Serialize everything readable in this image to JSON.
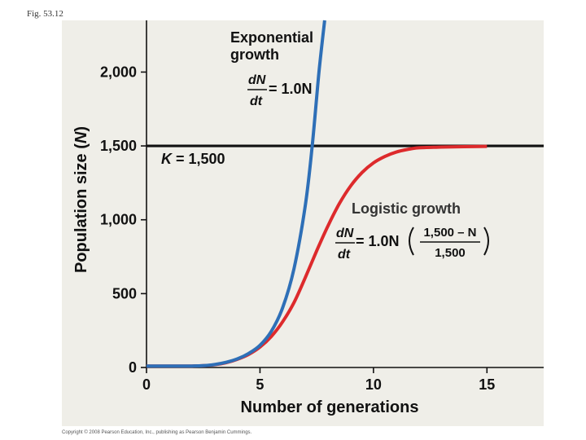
{
  "figure_label": "Fig. 53.12",
  "copyright": "Copyright © 2008 Pearson Education, Inc., publishing as Pearson Benjamin Cummings.",
  "chart_data": {
    "type": "line",
    "title": "",
    "xlabel": "Number of generations",
    "ylabel_parts": [
      "Population size (",
      "N",
      ")"
    ],
    "xlim": [
      0,
      17.5
    ],
    "ylim": [
      0,
      2350
    ],
    "xticks": [
      0,
      5,
      10,
      15
    ],
    "yticks": [
      0,
      500,
      1000,
      1500,
      2000
    ],
    "xtick_labels": [
      "0",
      "5",
      "10",
      "15"
    ],
    "ytick_labels": [
      "0",
      "500",
      "1,000",
      "1,500",
      "2,000"
    ],
    "carrying_capacity": {
      "value": 1500,
      "label": "K = 1,500",
      "label_k": "K",
      "label_rest": " = 1,500",
      "color": "#111111"
    },
    "series": [
      {
        "name": "Exponential growth",
        "name_line1": "Exponential",
        "name_line2": "growth",
        "color": "#2E6FB7",
        "equation": {
          "lhs_num": "dN",
          "lhs_den": "dt",
          "rhs": "= 1.0N"
        },
        "x": [
          0,
          1,
          2,
          2.5,
          3,
          3.5,
          4,
          4.5,
          5,
          5.5,
          6,
          6.5,
          7,
          7.3,
          7.6,
          7.85
        ],
        "y": [
          10,
          10,
          10,
          12,
          20,
          35,
          58,
          95,
          150,
          245,
          405,
          670,
          1100,
          1500,
          2000,
          2350
        ]
      },
      {
        "name": "Logistic growth",
        "color": "#DD2A2C",
        "equation": {
          "lhs_num": "dN",
          "lhs_den": "dt",
          "rhs": "= 1.0N",
          "frac_num": "1,500 – N",
          "frac_den": "1,500"
        },
        "x": [
          0,
          1,
          2,
          2.5,
          3,
          3.5,
          4,
          4.5,
          5,
          5.5,
          6,
          6.5,
          7,
          7.5,
          8,
          8.5,
          9,
          9.5,
          10,
          10.5,
          11,
          11.5,
          12,
          13,
          14,
          15
        ],
        "y": [
          10,
          10,
          10,
          12,
          18,
          32,
          55,
          88,
          138,
          210,
          310,
          440,
          610,
          790,
          960,
          1110,
          1230,
          1320,
          1385,
          1428,
          1458,
          1476,
          1487,
          1492,
          1495,
          1497
        ]
      }
    ]
  }
}
